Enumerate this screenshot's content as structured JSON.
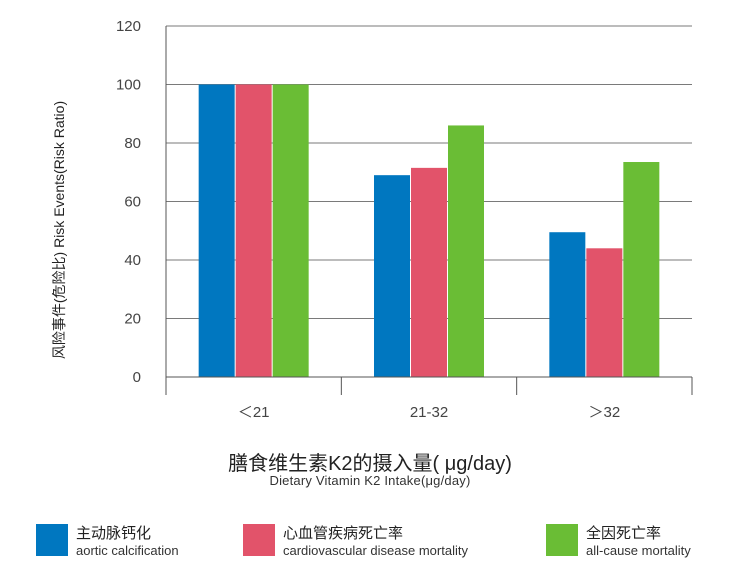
{
  "chart_data": {
    "type": "bar",
    "categories": [
      "＜21",
      "21-32",
      "＞32"
    ],
    "series": [
      {
        "name": "主动脉钙化",
        "name_en": "aortic calcification",
        "color": "#0077c0",
        "values": [
          100,
          69,
          49.5
        ]
      },
      {
        "name": "心血管疾病死亡率",
        "name_en": "cardiovascular disease mortality",
        "color": "#e2536a",
        "values": [
          100,
          71.5,
          44
        ]
      },
      {
        "name": "全因死亡率",
        "name_en": "all-cause mortality",
        "color": "#6abd35",
        "values": [
          100,
          86,
          73.5
        ]
      }
    ],
    "xlabel": "膳食维生素K2的摄入量( μg/day)",
    "xlabel_en": "Dietary Vitamin K2 Intake(μg/day)",
    "ylabel": "风险事件(危险比) Risk Events(Risk Ratio)",
    "ylim": [
      0,
      120
    ],
    "yticks": [
      0,
      20,
      40,
      60,
      80,
      100,
      120
    ],
    "grid": true,
    "legend_position": "bottom"
  }
}
